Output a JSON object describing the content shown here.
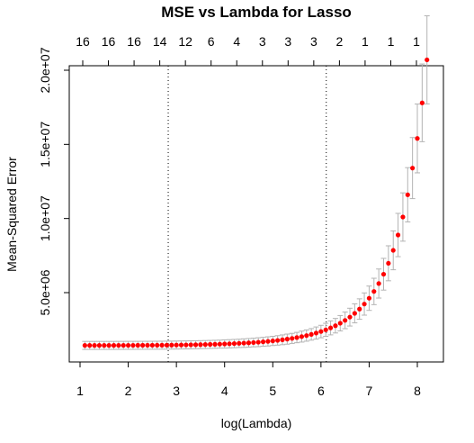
{
  "chart_data": {
    "type": "scatter",
    "title": "MSE vs Lambda for Lasso",
    "xlabel": "log(Lambda)",
    "ylabel": "Mean-Squared Error",
    "xlim": [
      1.0,
      8.3
    ],
    "ylim": [
      0,
      21000000
    ],
    "x_ticks": [
      1,
      2,
      3,
      4,
      5,
      6,
      7,
      8
    ],
    "x_tick_labels": [
      "1",
      "2",
      "3",
      "4",
      "5",
      "6",
      "7",
      "8"
    ],
    "y_ticks": [
      5000000,
      10000000,
      15000000,
      20000000
    ],
    "y_tick_labels": [
      "5.0e+06",
      "1.0e+07",
      "1.5e+07",
      "2.0e+07"
    ],
    "top_axis_labels": [
      "16",
      "16",
      "16",
      "14",
      "12",
      "6",
      "4",
      "3",
      "3",
      "3",
      "2",
      "1",
      "1",
      "1"
    ],
    "vertical_lines": [
      2.83,
      6.11
    ],
    "point_color": "#ff0000",
    "errorbar_color": "#b3b3b3",
    "grid": false,
    "series": [
      {
        "x": [
          1.1,
          1.2,
          1.3,
          1.4,
          1.5,
          1.6,
          1.7,
          1.8,
          1.9,
          2.0,
          2.1,
          2.2,
          2.3,
          2.4,
          2.5,
          2.6,
          2.7,
          2.8,
          2.9,
          3.0,
          3.1,
          3.2,
          3.3,
          3.4,
          3.5,
          3.6,
          3.7,
          3.8,
          3.9,
          4.0,
          4.1,
          4.2,
          4.3,
          4.4,
          4.5,
          4.6,
          4.7,
          4.8,
          4.9,
          5.0,
          5.1,
          5.2,
          5.3,
          5.4,
          5.5,
          5.6,
          5.7,
          5.8,
          5.9,
          6.0,
          6.1,
          6.2,
          6.3,
          6.4,
          6.5,
          6.6,
          6.7,
          6.8,
          6.9,
          7.0,
          7.1,
          7.2,
          7.3,
          7.4,
          7.5,
          7.6,
          7.7,
          7.8,
          7.9,
          8.0,
          8.1,
          8.2
        ],
        "y": [
          1440000,
          1440000,
          1440000,
          1440000,
          1440000,
          1440000,
          1441000,
          1442000,
          1443000,
          1444000,
          1445000,
          1446000,
          1448000,
          1449000,
          1451000,
          1453000,
          1455000,
          1458000,
          1461000,
          1465000,
          1470000,
          1475000,
          1480000,
          1486000,
          1493000,
          1500000,
          1508000,
          1517000,
          1527000,
          1538000,
          1550000,
          1564000,
          1579000,
          1595000,
          1614000,
          1634000,
          1657000,
          1683000,
          1711000,
          1743000,
          1779000,
          1819000,
          1864000,
          1914000,
          1971000,
          2034000,
          2105000,
          2185000,
          2275000,
          2377000,
          2492000,
          2622000,
          2769000,
          2937000,
          3129000,
          3349000,
          3602000,
          3893000,
          4231000,
          4623000,
          5080000,
          5614000,
          6241000,
          6979000,
          7852000,
          8886000,
          10100000,
          11600000,
          13400000,
          15400000,
          17800000,
          20700000
        ],
        "err": [
          270000,
          270000,
          270000,
          270000,
          270000,
          270000,
          270000,
          270000,
          270000,
          270000,
          270000,
          270000,
          270000,
          270000,
          270000,
          270000,
          270000,
          270000,
          270000,
          270000,
          270000,
          270000,
          270000,
          270000,
          270000,
          270000,
          270000,
          270000,
          270000,
          280000,
          280000,
          280000,
          280000,
          290000,
          290000,
          290000,
          300000,
          300000,
          310000,
          310000,
          320000,
          330000,
          340000,
          340000,
          350000,
          370000,
          380000,
          390000,
          410000,
          420000,
          440000,
          470000,
          490000,
          520000,
          560000,
          600000,
          640000,
          690000,
          750000,
          820000,
          890000,
          980000,
          1070000,
          1180000,
          1310000,
          1460000,
          1630000,
          1830000,
          2060000,
          2320000,
          2620000,
          2970000
        ]
      }
    ]
  }
}
